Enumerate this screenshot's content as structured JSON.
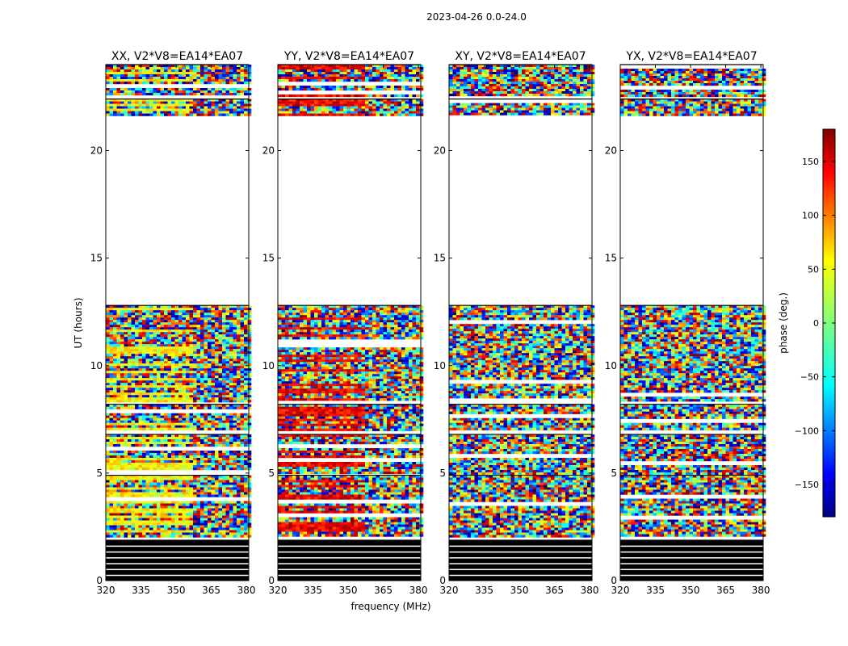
{
  "figure": {
    "title": "2023-04-26 0.0-24.0",
    "xlabel": "frequency (MHz)",
    "ylabel": "UT (hours)",
    "colorbar_label": "phase (deg.)"
  },
  "chart_data": {
    "type": "heatmap",
    "x_range": [
      320,
      381
    ],
    "y_range": [
      0,
      24
    ],
    "x_ticks": [
      320,
      335,
      350,
      365,
      380
    ],
    "y_ticks": [
      0,
      5,
      10,
      15,
      20
    ],
    "colorbar": {
      "range": [
        -180,
        180
      ],
      "ticks": [
        -150,
        -100,
        -50,
        0,
        50,
        100,
        150
      ],
      "colormap": "jet"
    },
    "panels": [
      {
        "title": "XX, V2*V8=EA14*EA07",
        "pol": "XX",
        "dominant_phase": 45
      },
      {
        "title": "YY, V2*V8=EA14*EA07",
        "pol": "YY",
        "dominant_phase": 140
      },
      {
        "title": "XY, V2*V8=EA14*EA07",
        "pol": "XY",
        "dominant_phase": null
      },
      {
        "title": "YX, V2*V8=EA14*EA07",
        "pol": "YX",
        "dominant_phase": null
      }
    ],
    "data_segments_hours": [
      [
        2.1,
        4.9
      ],
      [
        5.0,
        6.8
      ],
      [
        7.0,
        8.2
      ],
      [
        8.4,
        12.8
      ],
      [
        21.7,
        22.4
      ],
      [
        22.6,
        24.0
      ]
    ],
    "flagged_segments_hours": [
      [
        0.0,
        1.9
      ]
    ],
    "empty_segments_hours": [
      [
        12.8,
        21.7
      ]
    ]
  }
}
